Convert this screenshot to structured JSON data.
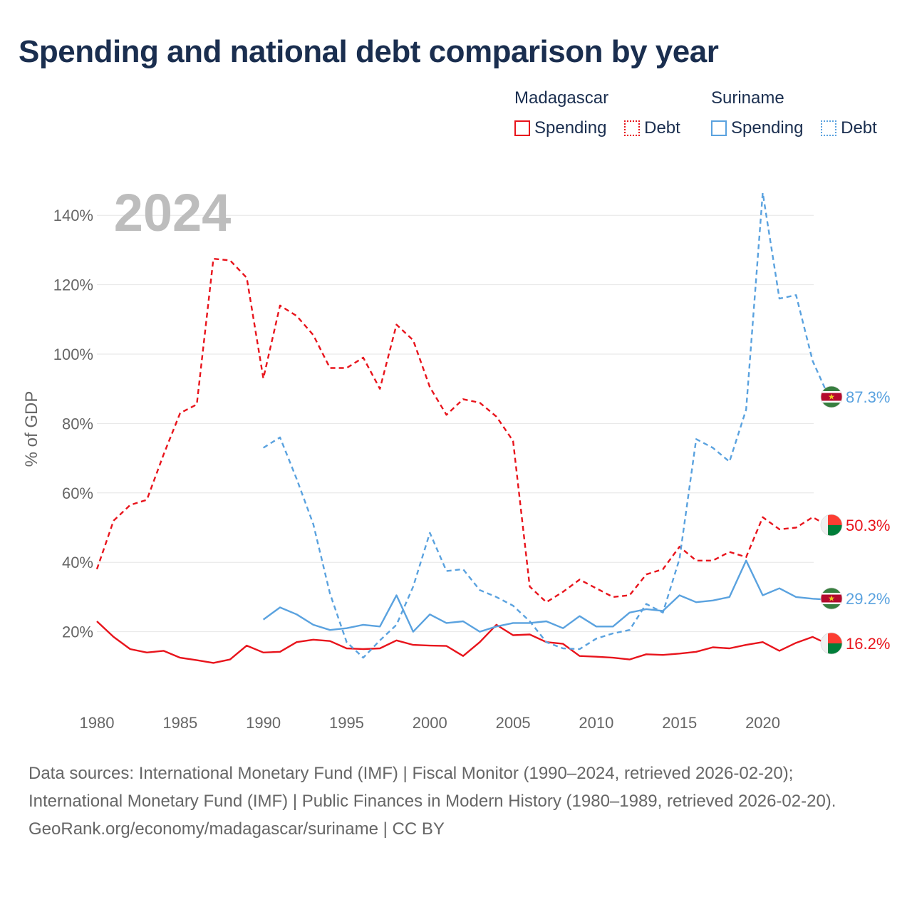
{
  "title": "Spending and national debt comparison by year",
  "colors": {
    "madagascar": "#e8141c",
    "suriname": "#5aa2df",
    "grid": "#e6e6e6",
    "axis_text": "#666666",
    "year_watermark": "#bdbdbd"
  },
  "legend": {
    "madagascar": {
      "country": "Madagascar",
      "spending": "Spending",
      "debt": "Debt"
    },
    "suriname": {
      "country": "Suriname",
      "spending": "Spending",
      "debt": "Debt"
    }
  },
  "chart_data": {
    "type": "line",
    "year_label": "2024",
    "ylabel": "% of GDP",
    "ylim": [
      0,
      150
    ],
    "yticks": [
      20,
      40,
      60,
      80,
      100,
      120,
      140
    ],
    "ytick_labels": [
      "20%",
      "40%",
      "60%",
      "80%",
      "100%",
      "120%",
      "140%"
    ],
    "xlim": [
      1980,
      2024
    ],
    "xticks": [
      1980,
      1985,
      1990,
      1995,
      2000,
      2005,
      2010,
      2015,
      2020
    ],
    "xtick_labels": [
      "1980",
      "1985",
      "1990",
      "1995",
      "2000",
      "2005",
      "2010",
      "2015",
      "2020"
    ],
    "series": [
      {
        "name": "Madagascar Debt",
        "country": "madagascar",
        "style": "dashed",
        "start_year": 1980,
        "values": [
          38,
          52,
          56.5,
          58,
          71,
          83,
          85.5,
          127.5,
          127,
          122,
          93,
          114,
          111,
          105.5,
          96,
          96,
          99,
          90,
          108.5,
          104,
          90.5,
          82.5,
          87,
          86,
          82,
          75,
          33,
          28.5,
          31.5,
          35,
          32.5,
          30,
          30.5,
          36.5,
          38,
          44.5,
          40.5,
          40.5,
          43,
          41.5,
          53,
          49.5,
          50,
          53,
          50.3
        ],
        "end_label": "50.3%"
      },
      {
        "name": "Madagascar Spending",
        "country": "madagascar",
        "style": "solid",
        "start_year": 1980,
        "values": [
          23,
          18.5,
          15,
          14,
          14.5,
          12.5,
          11.8,
          11,
          12,
          16,
          14,
          14.2,
          17,
          17.7,
          17.3,
          15.2,
          15,
          15.2,
          17.5,
          16.2,
          16,
          15.9,
          13,
          17,
          22,
          19,
          19.2,
          17,
          16.5,
          13,
          12.8,
          12.5,
          12,
          13.5,
          13.3,
          13.7,
          14.2,
          15.5,
          15.2,
          16.2,
          17,
          14.5,
          16.8,
          18.5,
          16.2
        ],
        "end_label": "16.2%"
      },
      {
        "name": "Suriname Debt",
        "country": "suriname",
        "style": "dashed",
        "start_year": 1990,
        "values": [
          73,
          76,
          64,
          51,
          31,
          17,
          12.5,
          17.5,
          22,
          33,
          48.5,
          37.5,
          38,
          32,
          30,
          27.5,
          23,
          17,
          15.2,
          15,
          18,
          19.5,
          20.5,
          28,
          25.5,
          41,
          75.5,
          73,
          69,
          84,
          146.5,
          116,
          117,
          98,
          87.3
        ],
        "end_label": "87.3%"
      },
      {
        "name": "Suriname Spending",
        "country": "suriname",
        "style": "solid",
        "start_year": 1990,
        "values": [
          23.5,
          27,
          25,
          22,
          20.5,
          21,
          22,
          21.5,
          30.5,
          20,
          25,
          22.5,
          23,
          20,
          21.5,
          22.5,
          22.5,
          23,
          21,
          24.5,
          21.5,
          21.5,
          25.5,
          26.5,
          26,
          30.5,
          28.5,
          29,
          30,
          40.5,
          30.5,
          32.5,
          30,
          29.5,
          29.2
        ],
        "end_label": "29.2%"
      }
    ]
  },
  "source": {
    "line1": "Data sources: International Monetary Fund (IMF) | Fiscal Monitor (1990–2024, retrieved 2026-02-20); International Monetary Fund (IMF) | Public Finances in Modern History (1980–1989, retrieved 2026-02-20).",
    "line2": "GeoRank.org/economy/madagascar/suriname | CC BY"
  }
}
